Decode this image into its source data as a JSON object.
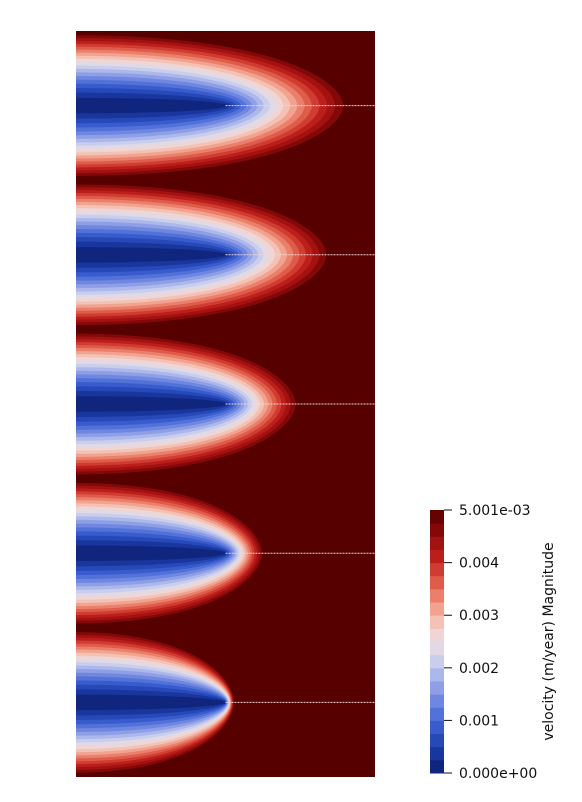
{
  "chart_data": {
    "type": "heatmap",
    "title": "",
    "colorbar": {
      "title": "velocity (m/year) Magnitude",
      "min": 0.0,
      "max": 0.005001,
      "min_label": "0.000e+00",
      "max_label": "5.001e-03",
      "ticks": [
        {
          "value": 0.001,
          "label": "0.001"
        },
        {
          "value": 0.002,
          "label": "0.002"
        },
        {
          "value": 0.003,
          "label": "0.003"
        },
        {
          "value": 0.004,
          "label": "0.004"
        }
      ],
      "levels": 20,
      "colormap": [
        "#0b1f6e",
        "#1c3aa8",
        "#3a5fd1",
        "#6e86e0",
        "#a5b2ea",
        "#dcdcee",
        "#f4d4cc",
        "#f29c86",
        "#e05a48",
        "#c0201c",
        "#8e0a0a",
        "#560000"
      ],
      "colors": {
        "low": "#0b1f6e",
        "mid": "#dcdcee",
        "high": "#560000"
      }
    },
    "plumes": [
      {
        "extent": 0.92,
        "tip": 0.5,
        "width": 0.98
      },
      {
        "extent": 0.86,
        "tip": 0.5,
        "width": 0.98
      },
      {
        "extent": 0.75,
        "tip": 0.5,
        "width": 0.98
      },
      {
        "extent": 0.63,
        "tip": 0.5,
        "width": 0.98
      },
      {
        "extent": 0.53,
        "tip": 0.5,
        "width": 0.98
      }
    ],
    "background_color": "#560000"
  }
}
